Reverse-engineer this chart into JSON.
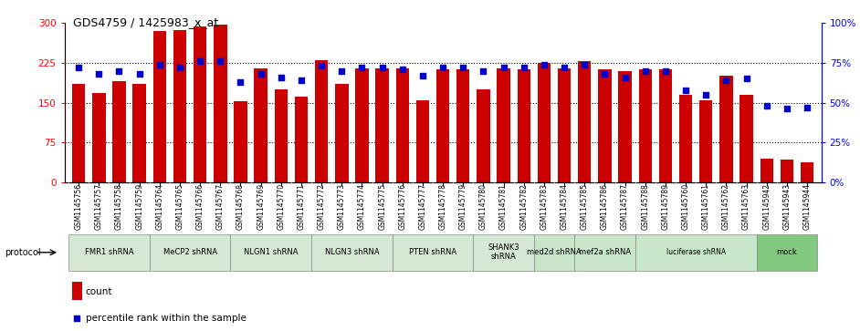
{
  "title": "GDS4759 / 1425983_x_at",
  "samples": [
    "GSM1145756",
    "GSM1145757",
    "GSM1145758",
    "GSM1145759",
    "GSM1145764",
    "GSM1145765",
    "GSM1145766",
    "GSM1145767",
    "GSM1145768",
    "GSM1145769",
    "GSM1145770",
    "GSM1145771",
    "GSM1145772",
    "GSM1145773",
    "GSM1145774",
    "GSM1145775",
    "GSM1145776",
    "GSM1145777",
    "GSM1145778",
    "GSM1145779",
    "GSM1145780",
    "GSM1145781",
    "GSM1145782",
    "GSM1145783",
    "GSM1145784",
    "GSM1145785",
    "GSM1145786",
    "GSM1145787",
    "GSM1145788",
    "GSM1145789",
    "GSM1145760",
    "GSM1145761",
    "GSM1145762",
    "GSM1145763",
    "GSM1145942",
    "GSM1145943",
    "GSM1145944"
  ],
  "counts": [
    185,
    168,
    190,
    185,
    285,
    287,
    293,
    298,
    153,
    215,
    175,
    161,
    230,
    185,
    215,
    215,
    215,
    155,
    213,
    213,
    175,
    215,
    213,
    225,
    215,
    228,
    213,
    210,
    213,
    213,
    165,
    155,
    200,
    165,
    45,
    42,
    38
  ],
  "percentiles": [
    72,
    68,
    70,
    68,
    74,
    72,
    76,
    76,
    63,
    68,
    66,
    64,
    73,
    70,
    72,
    72,
    71,
    67,
    72,
    72,
    70,
    72,
    72,
    74,
    72,
    74,
    68,
    66,
    70,
    70,
    58,
    55,
    64,
    65,
    48,
    46,
    47
  ],
  "protocols": [
    {
      "label": "FMR1 shRNA",
      "start": 0,
      "end": 4,
      "color": "#d5e8d4"
    },
    {
      "label": "MeCP2 shRNA",
      "start": 4,
      "end": 8,
      "color": "#d5e8d4"
    },
    {
      "label": "NLGN1 shRNA",
      "start": 8,
      "end": 12,
      "color": "#d5e8d4"
    },
    {
      "label": "NLGN3 shRNA",
      "start": 12,
      "end": 16,
      "color": "#d5e8d4"
    },
    {
      "label": "PTEN shRNA",
      "start": 16,
      "end": 20,
      "color": "#d5e8d4"
    },
    {
      "label": "SHANK3\nshRNA",
      "start": 20,
      "end": 23,
      "color": "#d5e8d4"
    },
    {
      "label": "med2d shRNA",
      "start": 23,
      "end": 25,
      "color": "#c8e6c9"
    },
    {
      "label": "mef2a shRNA",
      "start": 25,
      "end": 28,
      "color": "#c8e6c9"
    },
    {
      "label": "luciferase shRNA",
      "start": 28,
      "end": 34,
      "color": "#c8e6c9"
    },
    {
      "label": "mock",
      "start": 34,
      "end": 37,
      "color": "#82c97f"
    }
  ],
  "bar_color": "#cc0000",
  "dot_color": "#0000cc",
  "ylim_left": [
    0,
    300
  ],
  "ylim_right": [
    0,
    100
  ],
  "yticks_left": [
    0,
    75,
    150,
    225,
    300
  ],
  "yticks_right": [
    0,
    25,
    50,
    75,
    100
  ],
  "ytick_labels_left": [
    "0",
    "75",
    "150",
    "225",
    "300"
  ],
  "ytick_labels_right": [
    "0%",
    "25%",
    "50%",
    "75%",
    "100%"
  ],
  "grid_values": [
    75,
    150,
    225
  ],
  "legend_count_label": "count",
  "legend_pct_label": "percentile rank within the sample",
  "protocol_label": "protocol",
  "bg_color": "#eeeeee"
}
